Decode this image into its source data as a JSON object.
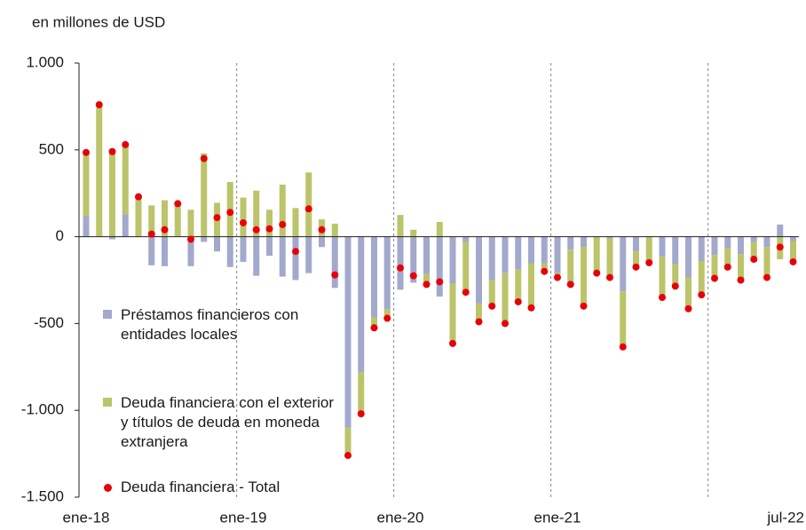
{
  "chart_data": {
    "type": "bar",
    "stacked": true,
    "title": "en millones de USD",
    "categories": [
      "ene-18",
      null,
      null,
      null,
      null,
      null,
      null,
      null,
      null,
      null,
      null,
      null,
      "ene-19",
      null,
      null,
      null,
      null,
      null,
      null,
      null,
      null,
      null,
      null,
      null,
      "ene-20",
      null,
      null,
      null,
      null,
      null,
      null,
      null,
      null,
      null,
      null,
      null,
      "ene-21",
      null,
      null,
      null,
      null,
      null,
      null,
      null,
      null,
      null,
      null,
      null,
      null,
      null,
      null,
      null,
      null,
      null,
      "jul-22"
    ],
    "series": [
      {
        "name": "Préstamos financieros con entidades locales",
        "color": "#a3a9cc",
        "type": "bar",
        "values": [
          120,
          0,
          -15,
          130,
          0,
          -165,
          -170,
          0,
          -170,
          -30,
          -85,
          -175,
          -145,
          -225,
          -110,
          -230,
          -250,
          -210,
          -60,
          -295,
          -1100,
          -780,
          -465,
          -420,
          -305,
          -265,
          -215,
          -345,
          -270,
          -30,
          -385,
          -250,
          -210,
          -190,
          -155,
          -155,
          -210,
          -75,
          -60,
          0,
          -10,
          -315,
          -85,
          0,
          -115,
          -160,
          -235,
          -140,
          -105,
          -65,
          -100,
          -30,
          -60,
          70,
          -25
        ]
      },
      {
        "name": "Deuda financiera con el exterior y títulos de deuda en moneda extranjera",
        "color": "#bcc46a",
        "type": "bar",
        "values": [
          365,
          760,
          505,
          400,
          230,
          180,
          210,
          190,
          155,
          480,
          195,
          315,
          225,
          265,
          155,
          300,
          165,
          370,
          100,
          75,
          -160,
          -240,
          -60,
          -50,
          125,
          40,
          -60,
          85,
          -345,
          -290,
          -105,
          -150,
          -290,
          -185,
          -255,
          -45,
          -25,
          -200,
          -340,
          -210,
          -225,
          -320,
          -90,
          -150,
          -235,
          -125,
          -180,
          -195,
          -135,
          -110,
          -150,
          -100,
          -175,
          -130,
          -120
        ]
      },
      {
        "name": "Deuda financiera - Total",
        "color": "#e8000b",
        "type": "scatter",
        "values": [
          485,
          760,
          490,
          530,
          230,
          15,
          40,
          190,
          -15,
          450,
          110,
          140,
          80,
          40,
          45,
          70,
          -85,
          160,
          40,
          -220,
          -1260,
          -1020,
          -525,
          -470,
          -180,
          -225,
          -275,
          -260,
          -615,
          -320,
          -490,
          -400,
          -500,
          -375,
          -410,
          -200,
          -235,
          -275,
          -400,
          -210,
          -235,
          -635,
          -175,
          -150,
          -350,
          -285,
          -415,
          -335,
          -240,
          -175,
          -250,
          -130,
          -235,
          -60,
          -145
        ]
      }
    ],
    "ylim": [
      -1500,
      1000
    ],
    "yticks": [
      {
        "value": -1500,
        "label": "-1.500"
      },
      {
        "value": -1000,
        "label": "-1.000"
      },
      -500,
      0,
      500,
      {
        "value": 1000,
        "label": "1.000"
      }
    ],
    "grid": false
  }
}
